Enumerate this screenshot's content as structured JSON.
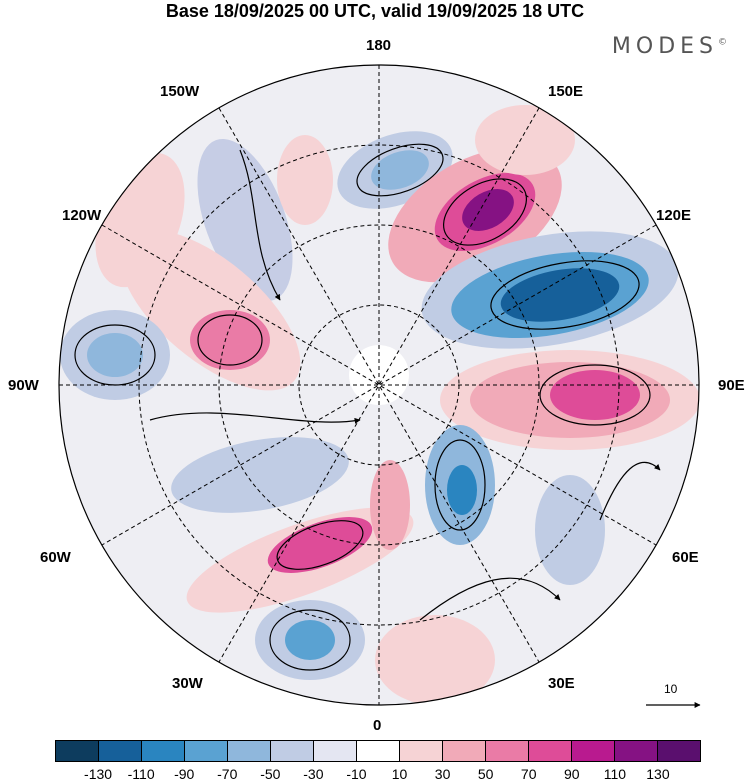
{
  "title": "Base 18/09/2025 00 UTC, valid 19/09/2025 18 UTC",
  "logo": "MODES",
  "logo_mark": "©",
  "longitude_labels": {
    "n180": "180",
    "w150": "150W",
    "e150": "150E",
    "w120": "120W",
    "e120": "120E",
    "w90": "90W",
    "e90": "90E",
    "w60": "60W",
    "e60": "60E",
    "w30": "30W",
    "e30": "30E",
    "s0": "0"
  },
  "vector_scale": {
    "label": "10"
  },
  "colorbar": {
    "ticks": [
      "-130",
      "-110",
      "-90",
      "-70",
      "-50",
      "-30",
      "-10",
      "10",
      "30",
      "50",
      "70",
      "90",
      "110",
      "130"
    ],
    "colors": [
      "#0d3c5e",
      "#16609a",
      "#2a85c0",
      "#5aa2d2",
      "#8fb7dc",
      "#c0cce4",
      "#e4e6f2",
      "#ffffff",
      "#f6d3d5",
      "#f1aab8",
      "#ea7ba6",
      "#de4c98",
      "#b91a8f",
      "#851283",
      "#5a0f6e"
    ]
  }
}
